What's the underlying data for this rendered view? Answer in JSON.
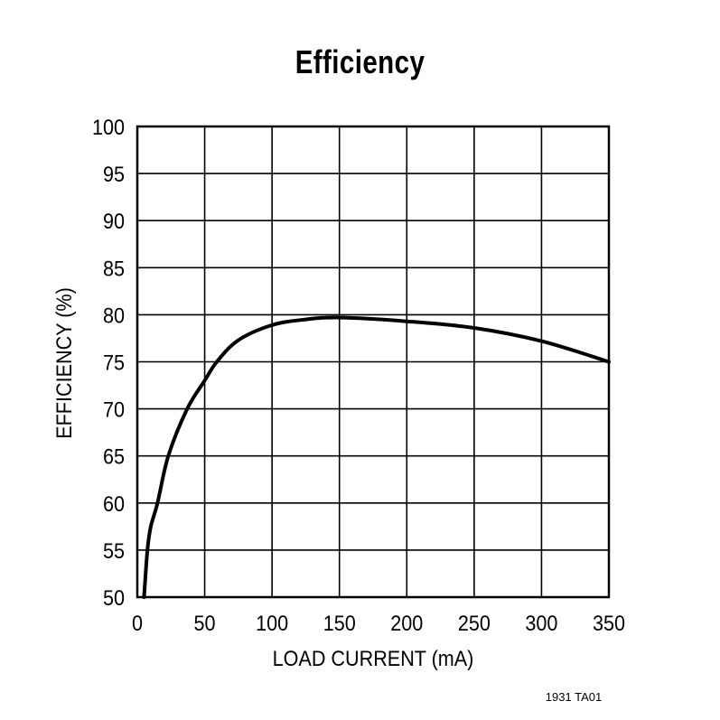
{
  "chart_data": {
    "type": "line",
    "title": "Efficiency",
    "xlabel": "LOAD CURRENT (mA)",
    "ylabel": "EFFICIENCY (%)",
    "xlim": [
      0,
      350
    ],
    "ylim": [
      50,
      100
    ],
    "x_ticks": [
      0,
      50,
      100,
      150,
      200,
      250,
      300,
      350
    ],
    "y_ticks": [
      50,
      55,
      60,
      65,
      70,
      75,
      80,
      85,
      90,
      95,
      100
    ],
    "grid": true,
    "legend": null,
    "series": [
      {
        "name": "Efficiency",
        "x": [
          5,
          7.5,
          10,
          15,
          23,
          37,
          50,
          59,
          75,
          100,
          125,
          150,
          200,
          250,
          300,
          350
        ],
        "values": [
          50,
          55,
          57.5,
          60,
          65,
          70,
          73,
          75,
          77.3,
          78.9,
          79.5,
          79.7,
          79.3,
          78.6,
          77.2,
          75
        ]
      }
    ],
    "footnote": "1931 TA01"
  },
  "labels": {
    "title": "Efficiency",
    "xlabel": "LOAD CURRENT (mA)",
    "ylabel": "EFFICIENCY (%)",
    "footnote": "1931 TA01"
  }
}
